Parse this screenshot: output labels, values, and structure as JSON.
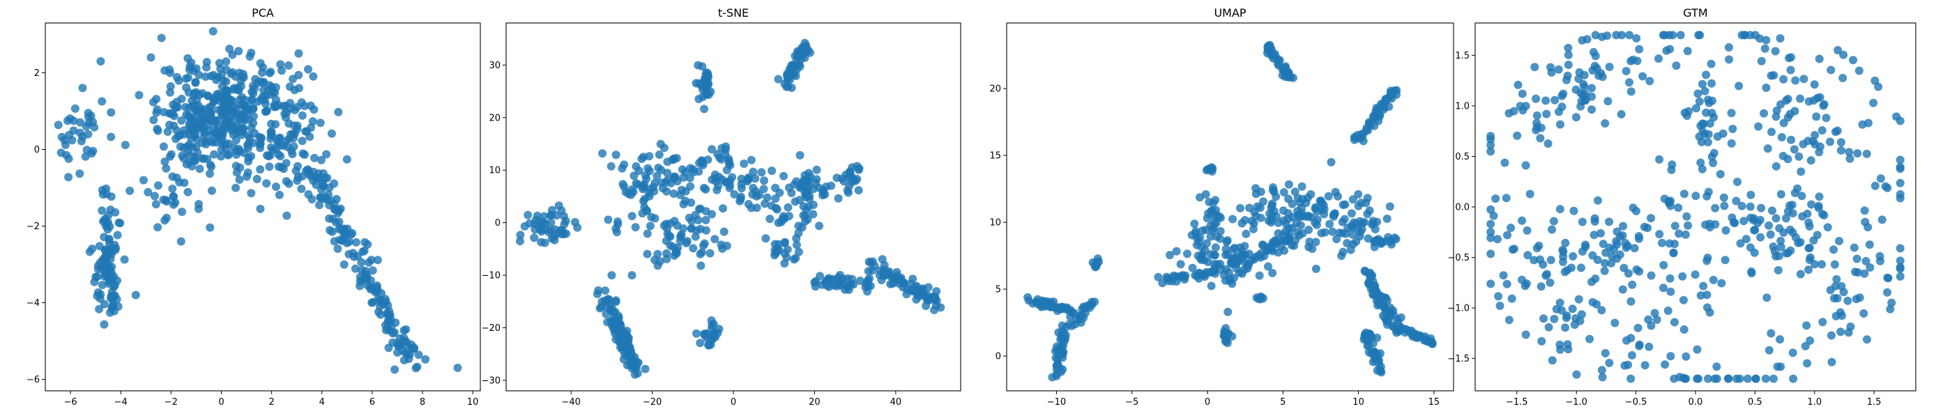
{
  "figure": {
    "marker_color": "#1f77b4",
    "marker_alpha": 0.8
  },
  "chart_data": [
    {
      "type": "scatter",
      "title": "PCA",
      "xlabel": "",
      "ylabel": "",
      "xlim": [
        -7.0,
        10.3
      ],
      "ylim": [
        -6.3,
        3.3
      ],
      "xticks": [
        -6,
        -4,
        -2,
        0,
        2,
        4,
        6,
        8,
        10
      ],
      "yticks": [
        -6,
        -4,
        -2,
        0,
        2
      ],
      "grid": false,
      "clusters": [
        {
          "cx": 0.5,
          "cy": 1.0,
          "sx": 1.5,
          "sy": 0.7,
          "n": 360
        },
        {
          "cx": -1.3,
          "cy": 0.0,
          "sx": 0.6,
          "sy": 0.8,
          "n": 60
        },
        {
          "cx": -5.6,
          "cy": 0.4,
          "sx": 0.45,
          "sy": 0.5,
          "n": 35
        },
        {
          "cx": -4.6,
          "cy": -3.0,
          "sx": 0.3,
          "sy": 0.8,
          "n": 55
        },
        {
          "cx": 2.5,
          "cy": 0.0,
          "sx": 0.8,
          "sy": 0.7,
          "n": 40
        },
        {
          "cx": -2.5,
          "cy": -1.2,
          "sx": 0.7,
          "sy": 0.4,
          "n": 20
        }
      ],
      "segments": [
        {
          "x0": 3.5,
          "y0": -0.3,
          "x1": 7.8,
          "y1": -5.8,
          "s": 0.4,
          "n": 160
        },
        {
          "x0": -4.6,
          "y0": -1.0,
          "x1": -4.3,
          "y1": -4.3,
          "s": 0.2,
          "n": 40
        }
      ],
      "points": [
        [
          9.4,
          -5.7
        ],
        [
          -4.8,
          2.3
        ],
        [
          -2.8,
          2.4
        ],
        [
          -4.1,
          -4.1
        ],
        [
          -3.4,
          -3.8
        ],
        [
          -1.6,
          -2.4
        ],
        [
          7.0,
          -5.3
        ]
      ]
    },
    {
      "type": "scatter",
      "title": "t-SNE",
      "xlabel": "",
      "ylabel": "",
      "xlim": [
        -56,
        56
      ],
      "ylim": [
        -32,
        38
      ],
      "xticks": [
        -40,
        -20,
        0,
        20,
        40
      ],
      "yticks": [
        -30,
        -20,
        -10,
        0,
        10,
        20,
        30
      ],
      "grid": false,
      "clusters": [
        {
          "cx": -45,
          "cy": -0.5,
          "sx": 3.5,
          "sy": 1.6,
          "n": 45
        },
        {
          "cx": -7,
          "cy": 26,
          "sx": 0.9,
          "sy": 1.8,
          "n": 30
        },
        {
          "cx": -6,
          "cy": -21.5,
          "sx": 1.3,
          "sy": 1.4,
          "n": 22
        },
        {
          "cx": -23,
          "cy": 6,
          "sx": 3.5,
          "sy": 4.0,
          "n": 50
        },
        {
          "cx": -15,
          "cy": 10,
          "sx": 4,
          "sy": 2.5,
          "n": 35
        },
        {
          "cx": -5,
          "cy": 10,
          "sx": 4,
          "sy": 2.5,
          "n": 40
        },
        {
          "cx": -12,
          "cy": -3,
          "sx": 5,
          "sy": 3.5,
          "n": 60
        },
        {
          "cx": 4,
          "cy": 6,
          "sx": 2.5,
          "sy": 2.5,
          "n": 25
        },
        {
          "cx": 14,
          "cy": 3,
          "sx": 4,
          "sy": 3,
          "n": 40
        },
        {
          "cx": 20,
          "cy": 7,
          "sx": 3,
          "sy": 1.5,
          "n": 30
        },
        {
          "cx": 29,
          "cy": 8.5,
          "sx": 1.4,
          "sy": 1.3,
          "n": 20
        },
        {
          "cx": 12,
          "cy": -5,
          "sx": 3,
          "sy": 1.2,
          "n": 20
        }
      ],
      "segments": [
        {
          "x0": 12,
          "y0": 26,
          "x1": 18,
          "y1": 34,
          "s": 1.2,
          "n": 55
        },
        {
          "x0": -32,
          "y0": -14,
          "x1": -24,
          "y1": -28,
          "s": 1.4,
          "n": 110
        },
        {
          "x0": 20,
          "y0": -11,
          "x1": 34,
          "y1": -12,
          "s": 1.4,
          "n": 40
        },
        {
          "x0": 34,
          "y0": -8,
          "x1": 51,
          "y1": -15.5,
          "s": 1.2,
          "n": 75
        }
      ],
      "points": [
        [
          -27,
          -26
        ],
        [
          -30,
          -10
        ],
        [
          -25,
          -10
        ],
        [
          -2,
          13
        ]
      ]
    },
    {
      "type": "scatter",
      "title": "UMAP",
      "xlabel": "",
      "ylabel": "",
      "xlim": [
        -13.3,
        16.3
      ],
      "ylim": [
        -2.6,
        24.9
      ],
      "xticks": [
        -10,
        -5,
        0,
        5,
        10,
        15
      ],
      "yticks": [
        0,
        5,
        10,
        15,
        20
      ],
      "grid": false,
      "clusters": [
        {
          "cx": -7.4,
          "cy": 6.9,
          "sx": 0.15,
          "sy": 0.2,
          "n": 10
        },
        {
          "cx": 0.2,
          "cy": 14,
          "sx": 0.15,
          "sy": 0.15,
          "n": 8
        },
        {
          "cx": 1.3,
          "cy": 1.6,
          "sx": 0.15,
          "sy": 0.25,
          "n": 15
        },
        {
          "cx": 3.5,
          "cy": 4.3,
          "sx": 0.12,
          "sy": 0.15,
          "n": 6
        },
        {
          "cx": 1.0,
          "cy": 7.5,
          "sx": 1.3,
          "sy": 1.3,
          "n": 80
        },
        {
          "cx": 5.0,
          "cy": 11.0,
          "sx": 1.5,
          "sy": 0.9,
          "n": 60
        },
        {
          "cx": 9.0,
          "cy": 10.0,
          "sx": 1.5,
          "sy": 1.3,
          "n": 80
        },
        {
          "cx": 0.3,
          "cy": 10.5,
          "sx": 0.3,
          "sy": 1.0,
          "n": 20
        }
      ],
      "segments": [
        {
          "x0": -11.7,
          "y0": 4.2,
          "x1": -9.0,
          "y1": 3.3,
          "s": 0.25,
          "n": 40
        },
        {
          "x0": -10.0,
          "y0": -1.4,
          "x1": -9.5,
          "y1": 2.0,
          "s": 0.25,
          "n": 40
        },
        {
          "x0": -9.2,
          "y0": 2.0,
          "x1": -7.7,
          "y1": 4.0,
          "s": 0.3,
          "n": 25
        },
        {
          "x0": -3.5,
          "y0": 5.5,
          "x1": 0.5,
          "y1": 6.3,
          "s": 0.25,
          "n": 30
        },
        {
          "x0": 1.5,
          "y0": 6.5,
          "x1": 6.0,
          "y1": 9.0,
          "s": 0.6,
          "n": 50
        },
        {
          "x0": 3.8,
          "y0": 23.5,
          "x1": 5.5,
          "y1": 20.8,
          "s": 0.2,
          "n": 40
        },
        {
          "x0": 9.8,
          "y0": 16.0,
          "x1": 12.3,
          "y1": 19.8,
          "s": 0.3,
          "n": 50
        },
        {
          "x0": 11.0,
          "y0": 8.5,
          "x1": 12.6,
          "y1": 8.8,
          "s": 0.25,
          "n": 15
        },
        {
          "x0": 10.5,
          "y0": 6.0,
          "x1": 12.5,
          "y1": 2.5,
          "s": 0.4,
          "n": 60
        },
        {
          "x0": 10.5,
          "y0": 1.8,
          "x1": 11.5,
          "y1": -1.3,
          "s": 0.3,
          "n": 40
        },
        {
          "x0": 12.0,
          "y0": 2.3,
          "x1": 14.9,
          "y1": 1.0,
          "s": 0.25,
          "n": 40
        }
      ],
      "points": []
    },
    {
      "type": "scatter",
      "title": "GTM",
      "xlabel": "",
      "ylabel": "",
      "xlim": [
        -1.85,
        1.85
      ],
      "ylim": [
        -1.82,
        1.82
      ],
      "xticks": [
        -1.5,
        -1.0,
        -0.5,
        0.0,
        0.5,
        1.0,
        1.5
      ],
      "yticks": [
        -1.5,
        -1.0,
        -0.5,
        0.0,
        0.5,
        1.0,
        1.5
      ],
      "grid": false,
      "layout": "ring",
      "ring_points": 260,
      "ring_radius": [
        1.2,
        1.72
      ],
      "clusters": [
        {
          "cx": -0.8,
          "cy": -0.4,
          "sx": 0.25,
          "sy": 0.22,
          "n": 60
        },
        {
          "cx": 0.8,
          "cy": -0.3,
          "sx": 0.25,
          "sy": 0.25,
          "n": 70
        },
        {
          "cx": 0.1,
          "cy": 0.9,
          "sx": 0.12,
          "sy": 0.3,
          "n": 35
        },
        {
          "cx": -0.9,
          "cy": 1.2,
          "sx": 0.25,
          "sy": 0.2,
          "n": 40
        },
        {
          "cx": 0.9,
          "cy": 0.8,
          "sx": 0.25,
          "sy": 0.25,
          "n": 40
        },
        {
          "cx": 0.0,
          "cy": 0.0,
          "sx": 0.35,
          "sy": 0.35,
          "n": 55
        },
        {
          "cx": -0.2,
          "cy": -0.9,
          "sx": 0.4,
          "sy": 0.2,
          "n": 30
        }
      ],
      "segments": [],
      "points": []
    }
  ]
}
